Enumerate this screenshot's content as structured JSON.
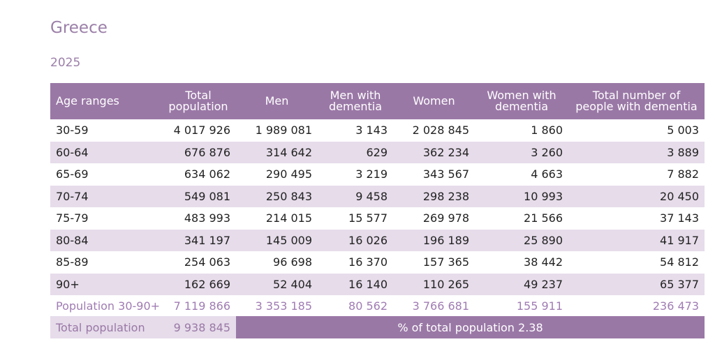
{
  "country": "Greece",
  "year": "2025",
  "headers": [
    "Age ranges",
    "Total population",
    "Men",
    "Men with dementia",
    "Women",
    "Women with dementia",
    "Total number of people with dementia"
  ],
  "rows": [
    [
      "30-59",
      "4 017 926",
      "1 989 081",
      "3 143",
      "2 028 845",
      "1 860",
      "5 003"
    ],
    [
      "60-64",
      "676 876",
      "314 642",
      "629",
      "362 234",
      "3 260",
      "3 889"
    ],
    [
      "65-69",
      "634 062",
      "290 495",
      "3 219",
      "343 567",
      "4 663",
      "7 882"
    ],
    [
      "70-74",
      "549 081",
      "250 843",
      "9 458",
      "298 238",
      "10 993",
      "20 450"
    ],
    [
      "75-79",
      "483 993",
      "214 015",
      "15 577",
      "269 978",
      "21 566",
      "37 143"
    ],
    [
      "80-84",
      "341 197",
      "145 009",
      "16 026",
      "196 189",
      "25 890",
      "41 917"
    ],
    [
      "85-89",
      "254 063",
      "96 698",
      "16 370",
      "157 365",
      "38 442",
      "54 812"
    ],
    [
      "90+",
      "162 669",
      "52 404",
      "16 140",
      "110 265",
      "49 237",
      "65 377"
    ]
  ],
  "population_row": [
    "Population 30-90+",
    "7 119 866",
    "3 353 185",
    "80 562",
    "3 766 681",
    "155 911",
    "236 473"
  ],
  "total": {
    "label": "Total population",
    "value": "9 938 845",
    "percent_text": "% of total population 2.38"
  }
}
